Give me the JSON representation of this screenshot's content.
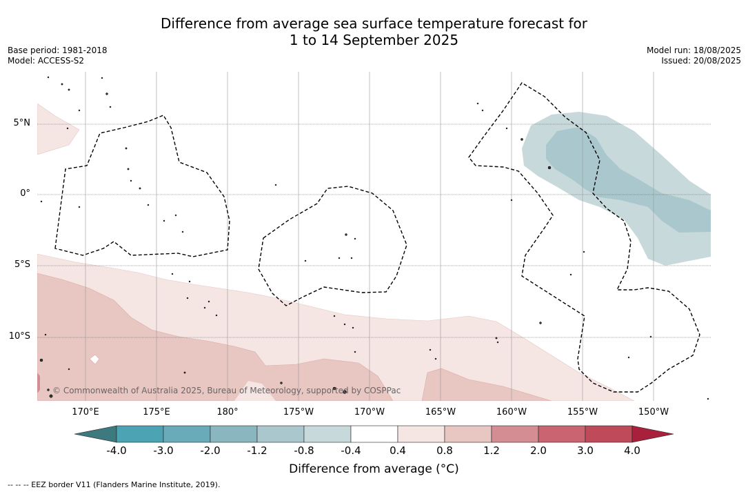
{
  "title": {
    "line1": "Difference from average sea surface temperature forecast for",
    "line2": "1 to 14 September 2025"
  },
  "meta_left": {
    "base_period": "Base period: 1981-2018",
    "model": "Model: ACCESS-S2"
  },
  "meta_right": {
    "model_run": "Model run: 18/08/2025",
    "issued": "Issued: 20/08/2025"
  },
  "map": {
    "lon_labels": [
      "170°E",
      "175°E",
      "180°",
      "175°W",
      "170°W",
      "165°W",
      "160°W",
      "155°W",
      "150°W"
    ],
    "lat_labels": [
      "5°N",
      "0°",
      "5°S",
      "10°S"
    ],
    "copyright": "© Commonwealth of Australia 2025, Bureau of Meteorology, supported by COSPPac",
    "gridlines": true,
    "eez_border_style": "dashed"
  },
  "colorbar": {
    "ticks": [
      "-4.0",
      "-3.0",
      "-2.0",
      "-1.2",
      "-0.8",
      "-0.4",
      "0.4",
      "0.8",
      "1.2",
      "2.0",
      "3.0",
      "4.0"
    ],
    "colors": [
      "#3d7a80",
      "#4ba3b4",
      "#6aabba",
      "#8ab6bf",
      "#a9c7cc",
      "#c7d9db",
      "#ffffff",
      "#f5e5e3",
      "#e8c6c2",
      "#d48d93",
      "#c96470",
      "#bf4a5a",
      "#a8203c"
    ],
    "label": "Difference from average (°C)"
  },
  "footnote": "--  --  -- EEZ border V11 (Flanders Marine Institute, 2019)."
}
